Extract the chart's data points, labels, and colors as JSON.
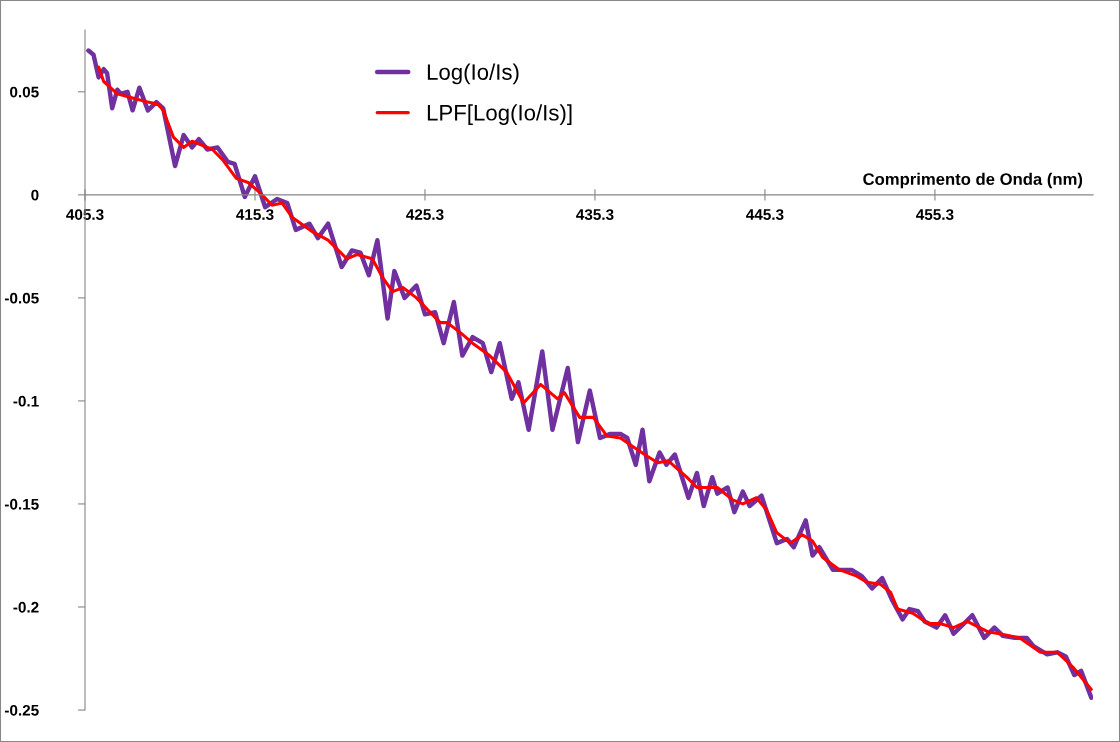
{
  "chart_data": {
    "type": "line",
    "xlabel": "Comprimento de Onda (nm)",
    "xlim": [
      405.3,
      464.6
    ],
    "xticks": [
      405.3,
      415.3,
      425.3,
      435.3,
      445.3,
      455.3
    ],
    "ylim": [
      -0.25,
      0.08
    ],
    "yticks": [
      -0.25,
      -0.2,
      -0.15,
      -0.1,
      -0.05,
      0,
      0.05
    ],
    "grid": false,
    "legend": "top",
    "marker": "none",
    "line_style": "solid",
    "series": [
      {
        "name": "Log(Io/Is)",
        "color": "#7030a0",
        "x": [
          405.5,
          405.8,
          406.1,
          406.4,
          406.6,
          406.9,
          407.2,
          407.4,
          407.8,
          408.1,
          408.5,
          409.0,
          409.5,
          409.9,
          410.6,
          411.1,
          411.6,
          412.0,
          412.5,
          413.1,
          413.7,
          414.1,
          414.7,
          415.3,
          415.9,
          416.6,
          417.2,
          417.7,
          418.5,
          419.0,
          419.6,
          420.4,
          421.0,
          421.5,
          422.0,
          422.5,
          423.1,
          423.5,
          424.1,
          424.8,
          425.3,
          425.9,
          426.4,
          427.0,
          427.5,
          428.1,
          428.7,
          429.2,
          429.7,
          430.4,
          430.8,
          431.4,
          432.2,
          432.8,
          433.7,
          434.3,
          435.0,
          435.6,
          436.2,
          436.8,
          437.2,
          437.7,
          438.1,
          438.5,
          439.1,
          439.5,
          440.0,
          440.8,
          441.3,
          441.7,
          442.2,
          442.5,
          443.1,
          443.5,
          444.0,
          444.4,
          445.1,
          446.0,
          446.6,
          447.0,
          447.7,
          448.1,
          448.5,
          449.3,
          450.4,
          451.0,
          451.6,
          452.2,
          452.8,
          453.4,
          453.8,
          454.3,
          454.7,
          455.4,
          455.9,
          456.4,
          456.9,
          457.5,
          458.2,
          458.8,
          459.3,
          460.0,
          460.7,
          461.1,
          461.9,
          462.5,
          463.0,
          463.5,
          463.9,
          464.5
        ],
        "values": [
          0.07,
          0.068,
          0.057,
          0.061,
          0.059,
          0.042,
          0.051,
          0.049,
          0.05,
          0.041,
          0.052,
          0.041,
          0.045,
          0.042,
          0.014,
          0.029,
          0.023,
          0.027,
          0.022,
          0.023,
          0.016,
          0.015,
          -0.001,
          0.009,
          -0.006,
          -0.002,
          -0.004,
          -0.017,
          -0.014,
          -0.021,
          -0.014,
          -0.035,
          -0.027,
          -0.028,
          -0.039,
          -0.022,
          -0.06,
          -0.037,
          -0.05,
          -0.044,
          -0.058,
          -0.057,
          -0.072,
          -0.052,
          -0.078,
          -0.069,
          -0.072,
          -0.086,
          -0.072,
          -0.099,
          -0.091,
          -0.114,
          -0.076,
          -0.114,
          -0.084,
          -0.12,
          -0.095,
          -0.118,
          -0.116,
          -0.116,
          -0.118,
          -0.131,
          -0.114,
          -0.139,
          -0.125,
          -0.131,
          -0.126,
          -0.147,
          -0.135,
          -0.151,
          -0.137,
          -0.145,
          -0.142,
          -0.154,
          -0.144,
          -0.151,
          -0.146,
          -0.169,
          -0.167,
          -0.171,
          -0.158,
          -0.175,
          -0.171,
          -0.182,
          -0.182,
          -0.185,
          -0.191,
          -0.186,
          -0.197,
          -0.206,
          -0.201,
          -0.202,
          -0.207,
          -0.21,
          -0.204,
          -0.213,
          -0.209,
          -0.204,
          -0.215,
          -0.21,
          -0.214,
          -0.215,
          -0.215,
          -0.219,
          -0.223,
          -0.222,
          -0.224,
          -0.233,
          -0.231,
          -0.244
        ]
      },
      {
        "name": "LPF[Log(Io/Is)]",
        "color": "#ff0000",
        "x": [
          406.1,
          406.4,
          407.2,
          408.1,
          409.0,
          409.6,
          409.9,
          410.5,
          411.1,
          411.6,
          412.2,
          412.8,
          413.4,
          414.2,
          414.9,
          415.6,
          416.3,
          416.9,
          417.5,
          418.7,
          419.6,
          420.7,
          421.3,
          422.2,
          422.8,
          423.4,
          424.0,
          424.8,
          425.6,
          426.2,
          426.6,
          427.4,
          428.1,
          429.1,
          430.1,
          431.1,
          432.1,
          433.1,
          433.5,
          434.4,
          435.2,
          436.0,
          436.8,
          437.5,
          438.4,
          439.0,
          439.6,
          440.7,
          441.3,
          442.5,
          443.4,
          444.0,
          444.8,
          445.4,
          446.0,
          446.8,
          447.5,
          448.1,
          448.7,
          449.7,
          450.7,
          451.3,
          452.1,
          452.7,
          453.1,
          454.0,
          454.9,
          455.6,
          456.4,
          457.2,
          458.4,
          459.1,
          460.3,
          461.5,
          462.5,
          463.4,
          464.5
        ],
        "values": [
          0.062,
          0.055,
          0.049,
          0.047,
          0.045,
          0.044,
          0.041,
          0.028,
          0.023,
          0.026,
          0.024,
          0.022,
          0.017,
          0.008,
          0.006,
          0.001,
          -0.005,
          -0.004,
          -0.011,
          -0.018,
          -0.022,
          -0.031,
          -0.029,
          -0.031,
          -0.04,
          -0.047,
          -0.045,
          -0.05,
          -0.057,
          -0.062,
          -0.062,
          -0.067,
          -0.072,
          -0.078,
          -0.086,
          -0.101,
          -0.092,
          -0.099,
          -0.096,
          -0.108,
          -0.108,
          -0.117,
          -0.118,
          -0.122,
          -0.127,
          -0.13,
          -0.129,
          -0.137,
          -0.142,
          -0.142,
          -0.148,
          -0.15,
          -0.147,
          -0.153,
          -0.164,
          -0.169,
          -0.165,
          -0.168,
          -0.176,
          -0.182,
          -0.185,
          -0.188,
          -0.189,
          -0.193,
          -0.201,
          -0.203,
          -0.208,
          -0.208,
          -0.21,
          -0.207,
          -0.212,
          -0.213,
          -0.215,
          -0.222,
          -0.222,
          -0.229,
          -0.24
        ]
      }
    ]
  }
}
